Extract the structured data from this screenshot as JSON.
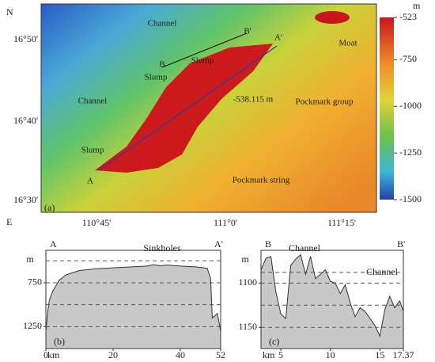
{
  "map": {
    "north": "N",
    "east": "E",
    "panel": "(a)",
    "lat_labels": [
      "16°50'",
      "16°40'",
      "16°30'"
    ],
    "lon_labels": [
      "110°45'",
      "111°0'",
      "111°15'"
    ],
    "labels": [
      "Channel",
      "B'",
      "Moat",
      "Slump",
      "B",
      "Slump",
      "Channel",
      "-538.115 m",
      "Pockmark group",
      "Slump",
      "A",
      "Pockmark string",
      "A'"
    ]
  },
  "colorbar": {
    "unit": "m",
    "lim": [
      -523,
      -1500
    ],
    "ticks": [
      -523,
      -750,
      -1000,
      -1250,
      -1500
    ]
  },
  "profile_b": {
    "start": "A",
    "end": "A'",
    "panel": "(b)",
    "annotation": "Sinkholes",
    "y_unit": "m",
    "x_unit": "km",
    "xlim": [
      0,
      52
    ],
    "xticks": [
      0,
      20,
      40,
      52
    ],
    "ylim": [
      380,
      1500
    ],
    "yticks": [
      750,
      1250
    ],
    "grid": [
      500,
      750,
      1000,
      1250
    ],
    "x": [
      0,
      0.5,
      1,
      2,
      4,
      6,
      10,
      15,
      20,
      25,
      30,
      32,
      34,
      36,
      40,
      45,
      48,
      49,
      49.5,
      50.5,
      51,
      51.5,
      52
    ],
    "values": [
      1300,
      1100,
      950,
      850,
      720,
      660,
      610,
      590,
      580,
      570,
      560,
      545,
      555,
      548,
      560,
      570,
      585,
      700,
      1150,
      1120,
      1100,
      1200,
      1300
    ]
  },
  "profile_c": {
    "start": "B",
    "end": "B'",
    "panel": "(c)",
    "annotations": [
      "Channel",
      "Channel"
    ],
    "y_unit": "m",
    "x_unit": "km",
    "xlim": [
      3,
      17.37
    ],
    "xticks": [
      5,
      10,
      15,
      17.37
    ],
    "ylim": [
      1063,
      1174
    ],
    "yticks": [
      1100,
      1150
    ],
    "grid": [
      1088,
      1100,
      1125,
      1150
    ],
    "x": [
      3,
      3.5,
      4,
      4.5,
      5,
      5.5,
      6,
      6.5,
      7,
      7.5,
      8,
      8.5,
      9,
      9.5,
      10,
      10.5,
      11,
      11.5,
      12,
      12.5,
      13,
      13.5,
      14,
      14.5,
      15,
      15.5,
      16,
      16.5,
      17,
      17.37
    ],
    "values": [
      1085,
      1072,
      1070,
      1110,
      1135,
      1140,
      1080,
      1073,
      1068,
      1090,
      1070,
      1095,
      1090,
      1085,
      1098,
      1100,
      1112,
      1102,
      1122,
      1138,
      1128,
      1132,
      1140,
      1148,
      1160,
      1130,
      1115,
      1128,
      1120,
      1132
    ]
  }
}
